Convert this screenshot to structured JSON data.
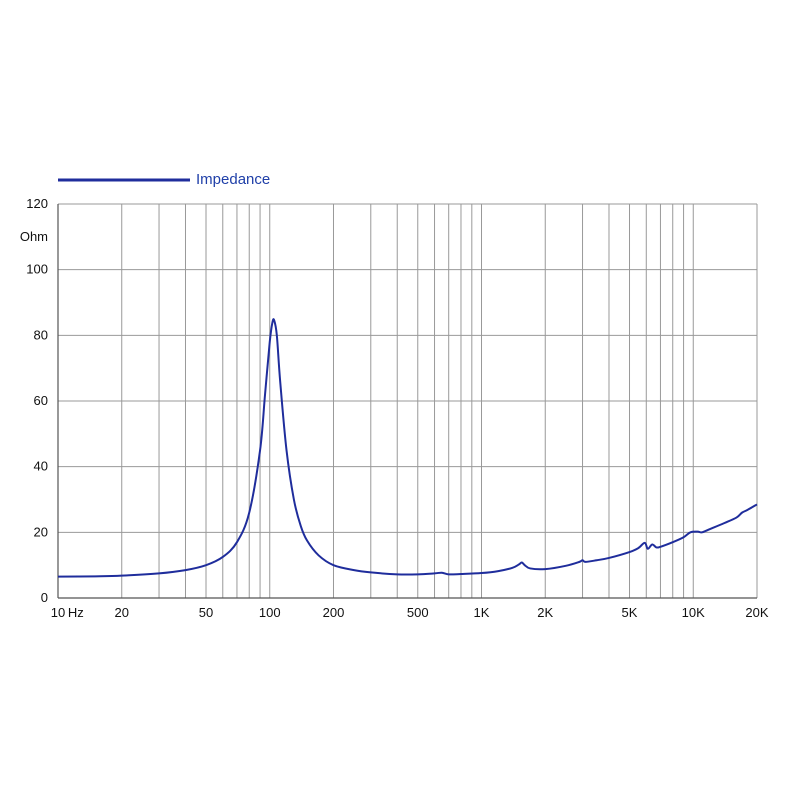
{
  "chart_data": {
    "type": "line",
    "title": "",
    "xlabel": "Hz",
    "ylabel": "Ohm",
    "x_scale": "log",
    "xlim": [
      10,
      20000
    ],
    "ylim": [
      0,
      120
    ],
    "grid": true,
    "legend_position": "top-left",
    "colors": {
      "series": "#1f2d9c",
      "grid": "#999999",
      "axis": "#555555"
    },
    "x_ticks": [
      {
        "value": 10,
        "label": "10"
      },
      {
        "value": 20,
        "label": "20"
      },
      {
        "value": 50,
        "label": "50"
      },
      {
        "value": 100,
        "label": "100"
      },
      {
        "value": 200,
        "label": "200"
      },
      {
        "value": 500,
        "label": "500"
      },
      {
        "value": 1000,
        "label": "1K"
      },
      {
        "value": 2000,
        "label": "2K"
      },
      {
        "value": 5000,
        "label": "5K"
      },
      {
        "value": 10000,
        "label": "10K"
      },
      {
        "value": 20000,
        "label": "20K"
      }
    ],
    "x_unit_label": "Hz",
    "y_ticks": [
      0,
      20,
      40,
      60,
      80,
      100,
      120
    ],
    "x_gridlines": [
      10,
      20,
      30,
      40,
      50,
      60,
      70,
      80,
      90,
      100,
      200,
      300,
      400,
      500,
      600,
      700,
      800,
      900,
      1000,
      2000,
      3000,
      4000,
      5000,
      6000,
      7000,
      8000,
      9000,
      10000,
      20000
    ],
    "series": [
      {
        "name": "Impedance",
        "points": [
          [
            10,
            6.5
          ],
          [
            15,
            6.6
          ],
          [
            20,
            6.8
          ],
          [
            30,
            7.5
          ],
          [
            40,
            8.5
          ],
          [
            50,
            10.0
          ],
          [
            60,
            12.5
          ],
          [
            70,
            17.0
          ],
          [
            80,
            26.0
          ],
          [
            90,
            45.0
          ],
          [
            95,
            62.0
          ],
          [
            100,
            78.0
          ],
          [
            103,
            84.0
          ],
          [
            105,
            84.5
          ],
          [
            108,
            80.0
          ],
          [
            112,
            66.0
          ],
          [
            120,
            45.0
          ],
          [
            130,
            30.0
          ],
          [
            140,
            22.0
          ],
          [
            150,
            17.5
          ],
          [
            170,
            13.0
          ],
          [
            200,
            10.0
          ],
          [
            250,
            8.5
          ],
          [
            300,
            7.8
          ],
          [
            400,
            7.2
          ],
          [
            500,
            7.2
          ],
          [
            600,
            7.5
          ],
          [
            650,
            7.7
          ],
          [
            700,
            7.2
          ],
          [
            800,
            7.3
          ],
          [
            1000,
            7.6
          ],
          [
            1200,
            8.2
          ],
          [
            1400,
            9.2
          ],
          [
            1500,
            10.2
          ],
          [
            1550,
            10.8
          ],
          [
            1600,
            10.0
          ],
          [
            1700,
            9.0
          ],
          [
            2000,
            8.8
          ],
          [
            2500,
            9.8
          ],
          [
            2900,
            11.0
          ],
          [
            3000,
            11.5
          ],
          [
            3100,
            11.0
          ],
          [
            3500,
            11.5
          ],
          [
            4000,
            12.2
          ],
          [
            5000,
            14.0
          ],
          [
            5500,
            15.2
          ],
          [
            5900,
            16.8
          ],
          [
            6100,
            15.0
          ],
          [
            6400,
            16.3
          ],
          [
            6700,
            15.4
          ],
          [
            7000,
            15.6
          ],
          [
            8000,
            17.0
          ],
          [
            9000,
            18.5
          ],
          [
            9700,
            20.0
          ],
          [
            10500,
            20.2
          ],
          [
            11000,
            20.0
          ],
          [
            12000,
            21.0
          ],
          [
            14000,
            22.8
          ],
          [
            16000,
            24.5
          ],
          [
            17000,
            26.0
          ],
          [
            18000,
            26.8
          ],
          [
            20000,
            28.5
          ]
        ]
      }
    ]
  }
}
